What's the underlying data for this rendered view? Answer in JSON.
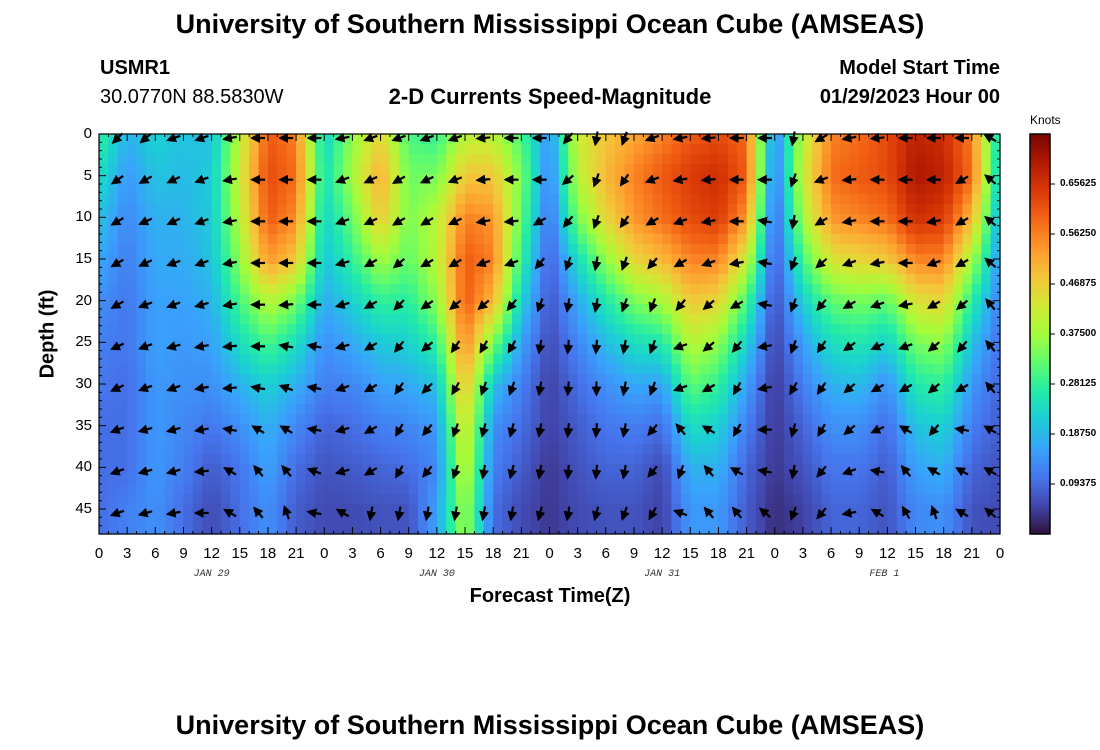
{
  "header": {
    "title_top": "University of Southern Mississippi Ocean Cube (AMSEAS)",
    "title_bottom": "University of Southern Mississippi Ocean Cube (AMSEAS)",
    "station": "USMR1",
    "coords": "30.0770N  88.5830W",
    "model_start_label": "Model Start Time",
    "model_start_value": "01/29/2023 Hour 00"
  },
  "chart_data": {
    "type": "heatmap",
    "title": "2-D Currents Speed-Magnitude",
    "xlabel": "Forecast Time(Z)",
    "ylabel": "Depth (ft)",
    "x_tick_labels": [
      "0",
      "3",
      "6",
      "9",
      "12",
      "15",
      "18",
      "21",
      "0",
      "3",
      "6",
      "9",
      "12",
      "15",
      "18",
      "21",
      "0",
      "3",
      "6",
      "9",
      "12",
      "15",
      "18",
      "21",
      "0",
      "3",
      "6",
      "9",
      "12",
      "15",
      "18",
      "21",
      "0"
    ],
    "x_hours": [
      0,
      3,
      6,
      9,
      12,
      15,
      18,
      21,
      24,
      27,
      30,
      33,
      36,
      39,
      42,
      45,
      48,
      51,
      54,
      57,
      60,
      63,
      66,
      69,
      72,
      75,
      78,
      81,
      84,
      87,
      90,
      93,
      96
    ],
    "date_labels": [
      {
        "text": "JAN 29",
        "hour": 12
      },
      {
        "text": "JAN 30",
        "hour": 36
      },
      {
        "text": "JAN 31",
        "hour": 60
      },
      {
        "text": "FEB 1",
        "hour": 84
      }
    ],
    "xlim": [
      0,
      96
    ],
    "y_ticks": [
      0,
      5,
      10,
      15,
      20,
      25,
      30,
      35,
      40,
      45
    ],
    "ylim": [
      0,
      48
    ],
    "colorbar": {
      "unit": "Knots",
      "range": [
        0,
        0.75
      ],
      "ticks": [
        0.09375,
        0.1875,
        0.28125,
        0.375,
        0.46875,
        0.5625,
        0.65625
      ],
      "tick_labels": [
        "0.09375",
        "0.18750",
        "0.28125",
        "0.37500",
        "0.46875",
        "0.56250",
        "0.65625"
      ]
    },
    "speed_columns": [
      {
        "hour": 0,
        "speed": [
          0.28,
          0.24,
          0.2,
          0.17,
          0.14,
          0.12,
          0.11,
          0.1,
          0.1,
          0.1
        ]
      },
      {
        "hour": 3,
        "speed": [
          0.18,
          0.15,
          0.13,
          0.12,
          0.11,
          0.11,
          0.1,
          0.1,
          0.1,
          0.12
        ]
      },
      {
        "hour": 6,
        "speed": [
          0.22,
          0.2,
          0.18,
          0.17,
          0.16,
          0.16,
          0.15,
          0.15,
          0.15,
          0.14
        ]
      },
      {
        "hour": 9,
        "speed": [
          0.2,
          0.19,
          0.18,
          0.17,
          0.16,
          0.15,
          0.14,
          0.13,
          0.12,
          0.1
        ]
      },
      {
        "hour": 12,
        "speed": [
          0.2,
          0.21,
          0.21,
          0.2,
          0.18,
          0.16,
          0.14,
          0.11,
          0.08,
          0.06
        ]
      },
      {
        "hour": 15,
        "speed": [
          0.4,
          0.42,
          0.4,
          0.36,
          0.3,
          0.24,
          0.18,
          0.14,
          0.11,
          0.1
        ]
      },
      {
        "hour": 18,
        "speed": [
          0.6,
          0.62,
          0.6,
          0.54,
          0.4,
          0.3,
          0.22,
          0.18,
          0.16,
          0.14
        ]
      },
      {
        "hour": 21,
        "speed": [
          0.56,
          0.58,
          0.55,
          0.48,
          0.34,
          0.24,
          0.18,
          0.13,
          0.1,
          0.08
        ]
      },
      {
        "hour": 24,
        "speed": [
          0.22,
          0.24,
          0.22,
          0.2,
          0.17,
          0.14,
          0.12,
          0.09,
          0.07,
          0.06
        ]
      },
      {
        "hour": 27,
        "speed": [
          0.36,
          0.38,
          0.33,
          0.28,
          0.22,
          0.17,
          0.13,
          0.1,
          0.08,
          0.06
        ]
      },
      {
        "hour": 30,
        "speed": [
          0.46,
          0.52,
          0.48,
          0.38,
          0.28,
          0.21,
          0.16,
          0.12,
          0.09,
          0.07
        ]
      },
      {
        "hour": 33,
        "speed": [
          0.3,
          0.33,
          0.34,
          0.32,
          0.27,
          0.22,
          0.17,
          0.13,
          0.1,
          0.07
        ]
      },
      {
        "hour": 36,
        "speed": [
          0.28,
          0.34,
          0.4,
          0.4,
          0.36,
          0.28,
          0.2,
          0.15,
          0.13,
          0.16
        ]
      },
      {
        "hour": 39,
        "speed": [
          0.4,
          0.48,
          0.56,
          0.6,
          0.6,
          0.56,
          0.5,
          0.45,
          0.42,
          0.38
        ]
      },
      {
        "hour": 42,
        "speed": [
          0.4,
          0.48,
          0.54,
          0.56,
          0.5,
          0.34,
          0.2,
          0.14,
          0.12,
          0.1
        ]
      },
      {
        "hour": 45,
        "speed": [
          0.3,
          0.34,
          0.32,
          0.28,
          0.22,
          0.16,
          0.12,
          0.1,
          0.08,
          0.06
        ]
      },
      {
        "hour": 48,
        "speed": [
          0.14,
          0.12,
          0.1,
          0.08,
          0.07,
          0.06,
          0.05,
          0.05,
          0.04,
          0.04
        ]
      },
      {
        "hour": 51,
        "speed": [
          0.42,
          0.4,
          0.34,
          0.24,
          0.17,
          0.13,
          0.1,
          0.08,
          0.07,
          0.06
        ]
      },
      {
        "hour": 54,
        "speed": [
          0.48,
          0.5,
          0.46,
          0.36,
          0.26,
          0.19,
          0.14,
          0.11,
          0.09,
          0.07
        ]
      },
      {
        "hour": 57,
        "speed": [
          0.52,
          0.56,
          0.54,
          0.46,
          0.34,
          0.24,
          0.17,
          0.12,
          0.09,
          0.07
        ]
      },
      {
        "hour": 60,
        "speed": [
          0.56,
          0.6,
          0.58,
          0.5,
          0.38,
          0.26,
          0.16,
          0.1,
          0.06,
          0.05
        ]
      },
      {
        "hour": 63,
        "speed": [
          0.6,
          0.64,
          0.62,
          0.56,
          0.48,
          0.4,
          0.32,
          0.24,
          0.18,
          0.15
        ]
      },
      {
        "hour": 66,
        "speed": [
          0.62,
          0.66,
          0.64,
          0.56,
          0.46,
          0.36,
          0.28,
          0.22,
          0.18,
          0.15
        ]
      },
      {
        "hour": 69,
        "speed": [
          0.58,
          0.6,
          0.54,
          0.42,
          0.3,
          0.22,
          0.16,
          0.12,
          0.09,
          0.08
        ]
      },
      {
        "hour": 72,
        "speed": [
          0.12,
          0.1,
          0.08,
          0.07,
          0.06,
          0.05,
          0.04,
          0.04,
          0.04,
          0.03
        ]
      },
      {
        "hour": 75,
        "speed": [
          0.4,
          0.42,
          0.38,
          0.3,
          0.22,
          0.16,
          0.12,
          0.09,
          0.07,
          0.05
        ]
      },
      {
        "hour": 78,
        "speed": [
          0.56,
          0.58,
          0.54,
          0.44,
          0.32,
          0.24,
          0.18,
          0.14,
          0.11,
          0.09
        ]
      },
      {
        "hour": 81,
        "speed": [
          0.58,
          0.6,
          0.56,
          0.46,
          0.34,
          0.26,
          0.19,
          0.14,
          0.11,
          0.09
        ]
      },
      {
        "hour": 84,
        "speed": [
          0.62,
          0.62,
          0.58,
          0.48,
          0.32,
          0.22,
          0.14,
          0.1,
          0.08,
          0.07
        ]
      },
      {
        "hour": 87,
        "speed": [
          0.68,
          0.7,
          0.66,
          0.56,
          0.44,
          0.34,
          0.26,
          0.2,
          0.16,
          0.13
        ]
      },
      {
        "hour": 90,
        "speed": [
          0.66,
          0.68,
          0.64,
          0.56,
          0.46,
          0.36,
          0.28,
          0.22,
          0.18,
          0.14
        ]
      },
      {
        "hour": 93,
        "speed": [
          0.56,
          0.58,
          0.5,
          0.38,
          0.27,
          0.2,
          0.15,
          0.12,
          0.09,
          0.07
        ]
      },
      {
        "hour": 96,
        "speed": [
          0.22,
          0.2,
          0.17,
          0.14,
          0.12,
          0.1,
          0.09,
          0.08,
          0.07,
          0.06
        ]
      }
    ],
    "vector_hours": [
      2,
      5,
      8,
      11,
      14,
      17,
      20,
      23,
      26,
      29,
      32,
      35,
      38,
      41,
      44,
      47,
      50,
      53,
      56,
      59,
      62,
      65,
      68,
      71,
      74,
      77,
      80,
      83,
      86,
      89,
      92,
      95
    ],
    "vector_depths": [
      0,
      5,
      10,
      15,
      20,
      25,
      30,
      35,
      40,
      45
    ],
    "vector_directions_deg": [
      [
        225,
        230,
        250,
        250,
        260,
        270,
        270,
        270,
        260,
        250,
        250,
        250,
        250,
        265,
        270,
        270,
        220,
        190,
        200,
        250,
        260,
        265,
        270,
        270,
        190,
        240,
        260,
        265,
        270,
        270,
        270,
        300
      ],
      [
        235,
        240,
        245,
        250,
        260,
        270,
        270,
        270,
        250,
        245,
        240,
        245,
        250,
        265,
        270,
        270,
        230,
        200,
        215,
        250,
        260,
        265,
        270,
        270,
        200,
        250,
        265,
        270,
        270,
        270,
        240,
        310
      ],
      [
        240,
        245,
        245,
        250,
        260,
        270,
        270,
        270,
        250,
        245,
        240,
        240,
        245,
        260,
        265,
        240,
        220,
        200,
        215,
        240,
        250,
        260,
        270,
        280,
        190,
        240,
        260,
        270,
        270,
        260,
        240,
        310
      ],
      [
        240,
        245,
        250,
        250,
        260,
        270,
        270,
        270,
        255,
        240,
        230,
        240,
        240,
        250,
        250,
        220,
        200,
        190,
        200,
        220,
        240,
        250,
        260,
        280,
        200,
        230,
        250,
        260,
        270,
        250,
        240,
        310
      ],
      [
        240,
        250,
        250,
        255,
        260,
        270,
        265,
        270,
        255,
        240,
        225,
        235,
        230,
        230,
        220,
        200,
        190,
        190,
        200,
        200,
        220,
        230,
        240,
        280,
        200,
        220,
        240,
        250,
        260,
        240,
        230,
        320
      ],
      [
        245,
        250,
        255,
        260,
        265,
        270,
        280,
        280,
        255,
        240,
        220,
        230,
        215,
        210,
        210,
        190,
        185,
        185,
        190,
        200,
        250,
        230,
        220,
        260,
        200,
        215,
        235,
        245,
        250,
        230,
        220,
        320
      ],
      [
        245,
        250,
        250,
        260,
        265,
        280,
        290,
        280,
        250,
        240,
        215,
        225,
        210,
        200,
        200,
        190,
        185,
        180,
        190,
        200,
        250,
        240,
        210,
        260,
        210,
        215,
        230,
        240,
        240,
        230,
        240,
        320
      ],
      [
        250,
        255,
        255,
        260,
        280,
        300,
        300,
        280,
        255,
        240,
        210,
        220,
        200,
        195,
        195,
        190,
        185,
        185,
        190,
        220,
        320,
        300,
        210,
        270,
        195,
        210,
        230,
        245,
        300,
        220,
        280,
        300
      ],
      [
        250,
        255,
        255,
        265,
        300,
        320,
        320,
        290,
        255,
        240,
        210,
        220,
        200,
        190,
        195,
        190,
        185,
        185,
        190,
        220,
        200,
        320,
        300,
        280,
        190,
        220,
        250,
        280,
        320,
        300,
        300,
        300
      ],
      [
        250,
        255,
        260,
        270,
        300,
        320,
        340,
        280,
        300,
        190,
        190,
        190,
        190,
        190,
        190,
        195,
        190,
        195,
        200,
        210,
        290,
        320,
        320,
        310,
        200,
        220,
        260,
        300,
        330,
        340,
        300,
        310
      ]
    ]
  }
}
